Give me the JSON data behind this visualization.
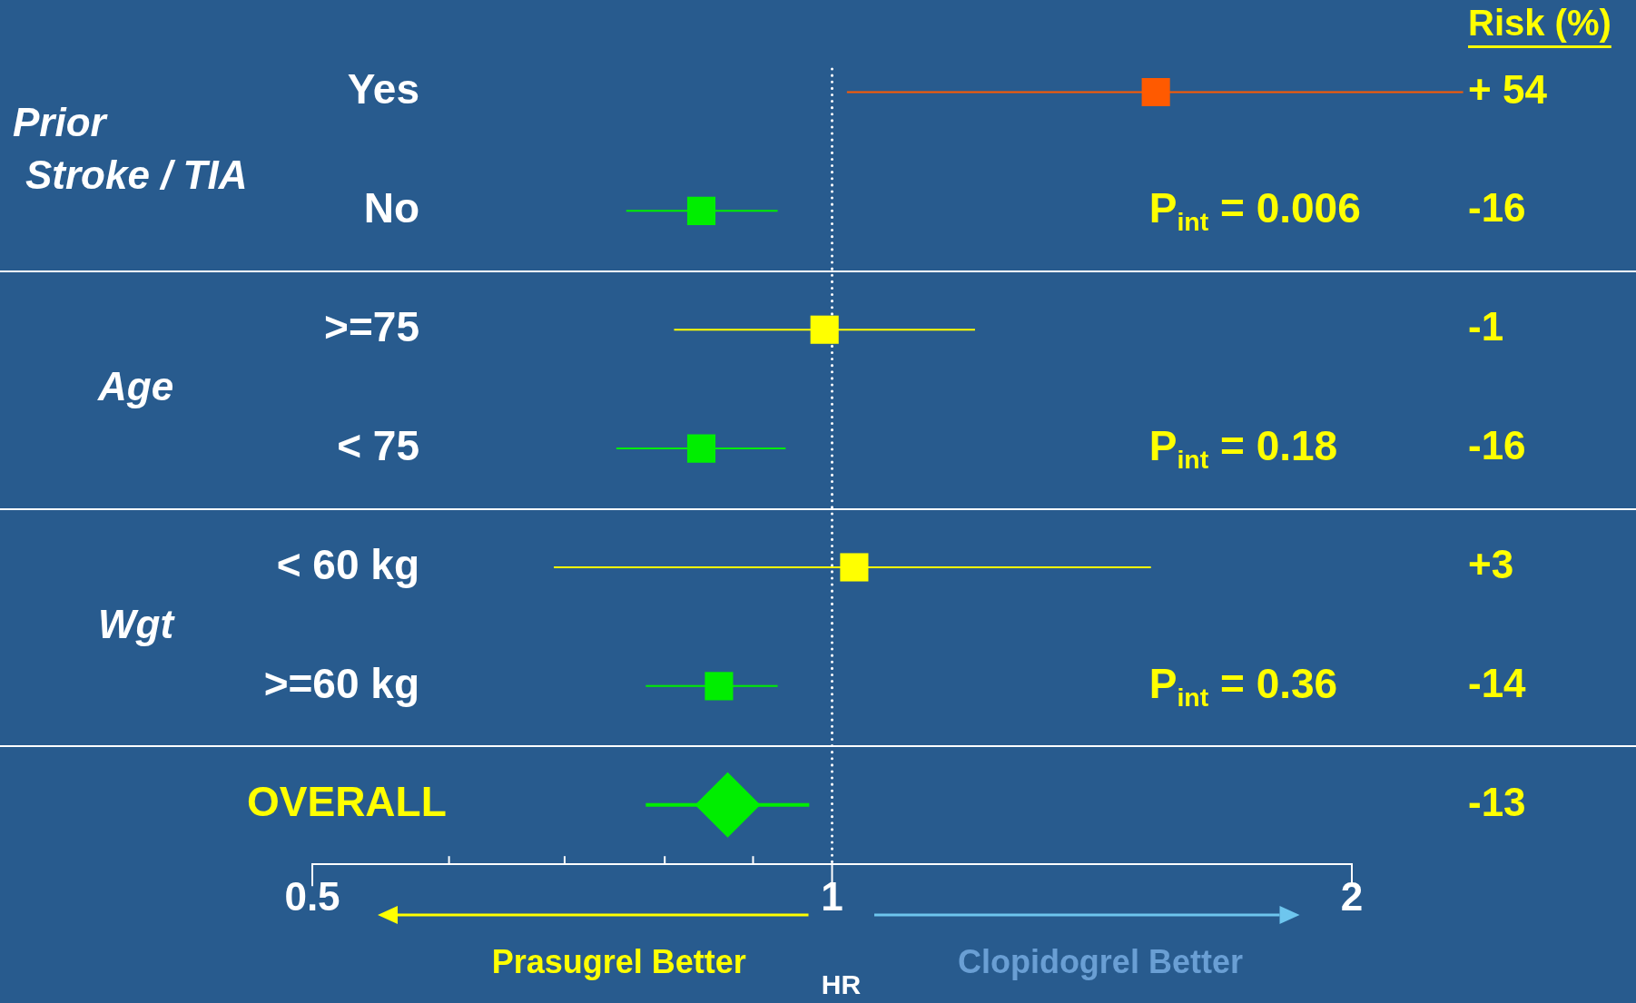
{
  "chart_data": {
    "type": "scatter",
    "orientation": "horizontal",
    "categories": [
      "Yes",
      "No",
      ">=75",
      "< 75",
      "< 60 kg",
      ">=60 kg",
      "OVERALL"
    ],
    "xlim": [
      0.5,
      2
    ],
    "xticks": [
      0.5,
      {
        "value": 0.6,
        "label": null
      },
      {
        "value": 0.7,
        "label": null
      },
      {
        "value": 0.8,
        "label": null
      },
      {
        "value": 0.9,
        "label": null
      },
      1,
      2
    ],
    "log": "x",
    "xlabel": "HR",
    "grid": false,
    "ref_lines": [
      {
        "axis": "x",
        "value": 1,
        "color": "#ffffff",
        "line_style": "dotted"
      }
    ],
    "series": [
      {
        "type": "scatter",
        "marker": "square",
        "colors": [
          "#ff5a00",
          "#00ee00",
          "#ffff00",
          "#00ee00",
          "#ffff00",
          "#00ee00",
          null
        ],
        "values": [
          1.54,
          0.84,
          0.99,
          0.84,
          1.03,
          0.86,
          null
        ],
        "errors": [
          [
            1.02,
            2.32
          ],
          [
            0.76,
            0.93
          ],
          [
            0.81,
            1.21
          ],
          [
            0.75,
            0.94
          ],
          [
            0.69,
            1.53
          ],
          [
            0.78,
            0.93
          ],
          null
        ]
      },
      {
        "type": "scatter",
        "marker": "diamond",
        "color": "#00ee00",
        "values": [
          null,
          null,
          null,
          null,
          null,
          null,
          0.87
        ],
        "errors": [
          null,
          null,
          null,
          null,
          null,
          null,
          [
            0.78,
            0.97
          ]
        ]
      }
    ],
    "annotations": [
      "Risk (%)",
      "+ 54",
      "-16",
      "-1",
      "-16",
      "+3",
      "-14",
      "-13",
      "Prior\nStroke / TIA",
      "Age",
      "Wgt",
      "P$_{int}$ = 0.006",
      "P$_{int}$ = 0.18",
      "P$_{int}$ = 0.36",
      "Prasugrel Better",
      "Clopidogrel Better"
    ]
  }
}
